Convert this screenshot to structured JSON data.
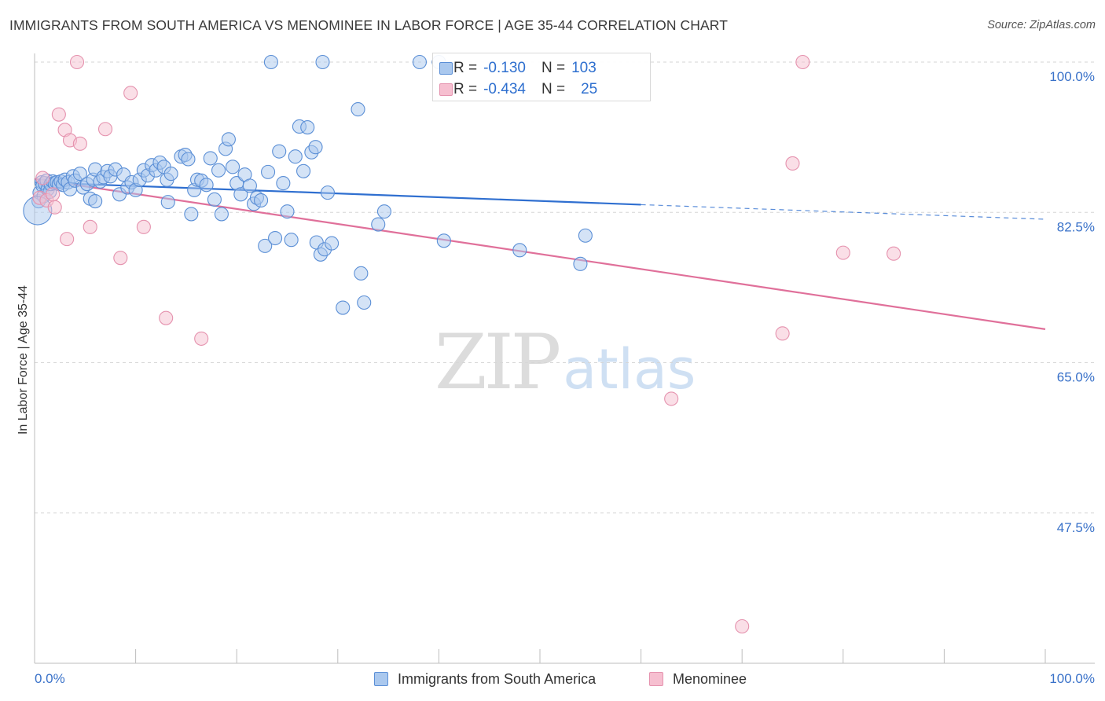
{
  "title": "IMMIGRANTS FROM SOUTH AMERICA VS MENOMINEE IN LABOR FORCE | AGE 35-44 CORRELATION CHART",
  "source": "Source: ZipAtlas.com",
  "watermark": {
    "zip": "ZIP",
    "atlas": "atlas"
  },
  "legend": {
    "r_label": "R = ",
    "n_label": "N = ",
    "rows": [
      {
        "r": "-0.130",
        "n": "103"
      },
      {
        "r": "-0.434",
        "n": "25"
      }
    ]
  },
  "colors": {
    "blue_fill": "#aac8ee",
    "blue_stroke": "#5b8fd6",
    "blue_line": "#2f6fd0",
    "pink_fill": "#f6bfd0",
    "pink_stroke": "#e592ae",
    "pink_line": "#e0709a",
    "grid": "#d6d6d6",
    "tick_label": "#3a72c9"
  },
  "chart_data": {
    "type": "scatter",
    "title": "IMMIGRANTS FROM SOUTH AMERICA VS MENOMINEE IN LABOR FORCE | AGE 35-44 CORRELATION CHART",
    "xlabel": "",
    "ylabel": "In Labor Force | Age 35-44",
    "xlim": [
      0,
      100
    ],
    "ylim": [
      30,
      100
    ],
    "x_tick_labels": [
      "0.0%",
      "100.0%"
    ],
    "y_ticks": [
      {
        "value": 100,
        "label": "100.0%"
      },
      {
        "value": 82.5,
        "label": "82.5%"
      },
      {
        "value": 65,
        "label": "65.0%"
      },
      {
        "value": 47.5,
        "label": "47.5%"
      }
    ],
    "grid": true,
    "legend_position": "top-center",
    "series": [
      {
        "name": "Immigrants from South America",
        "color": "#aac8ee",
        "trend": {
          "x": [
            0,
            60
          ],
          "y": [
            86.0,
            83.4
          ],
          "dashed_to": [
            100,
            81.7
          ]
        },
        "points": [
          [
            0.4,
            83.8
          ],
          [
            0.5,
            84.8
          ],
          [
            0.7,
            86.0
          ],
          [
            0.8,
            85.6
          ],
          [
            0.9,
            84.4
          ],
          [
            1.0,
            85.9
          ],
          [
            1.2,
            86.2
          ],
          [
            1.3,
            85.2
          ],
          [
            1.5,
            84.9
          ],
          [
            1.6,
            85.8
          ],
          [
            1.8,
            86.1
          ],
          [
            2.0,
            85.9
          ],
          [
            2.2,
            86.0
          ],
          [
            2.4,
            85.8
          ],
          [
            2.6,
            86.1
          ],
          [
            2.8,
            85.7
          ],
          [
            3.0,
            86.3
          ],
          [
            3.3,
            86.0
          ],
          [
            3.5,
            85.2
          ],
          [
            3.8,
            86.7
          ],
          [
            4.0,
            86.2
          ],
          [
            4.5,
            87.0
          ],
          [
            4.8,
            85.4
          ],
          [
            5.2,
            85.8
          ],
          [
            5.5,
            84.1
          ],
          [
            5.8,
            86.3
          ],
          [
            6.0,
            87.5
          ],
          [
            6.5,
            86.1
          ],
          [
            6.8,
            86.6
          ],
          [
            7.2,
            87.3
          ],
          [
            7.5,
            86.7
          ],
          [
            8.0,
            87.5
          ],
          [
            8.4,
            84.6
          ],
          [
            8.8,
            86.9
          ],
          [
            9.2,
            85.4
          ],
          [
            9.6,
            86.0
          ],
          [
            10.0,
            85.1
          ],
          [
            10.4,
            86.3
          ],
          [
            10.8,
            87.4
          ],
          [
            11.2,
            86.8
          ],
          [
            11.6,
            88.0
          ],
          [
            12.0,
            87.4
          ],
          [
            12.4,
            88.3
          ],
          [
            12.8,
            87.8
          ],
          [
            13.1,
            86.3
          ],
          [
            13.5,
            87.0
          ],
          [
            13.2,
            83.7
          ],
          [
            14.5,
            89.0
          ],
          [
            14.9,
            89.2
          ],
          [
            15.2,
            88.7
          ],
          [
            15.5,
            82.3
          ],
          [
            15.8,
            85.1
          ],
          [
            16.1,
            86.3
          ],
          [
            16.5,
            86.2
          ],
          [
            17.0,
            85.7
          ],
          [
            17.4,
            88.8
          ],
          [
            17.8,
            84.0
          ],
          [
            18.2,
            87.4
          ],
          [
            18.5,
            82.3
          ],
          [
            18.9,
            89.9
          ],
          [
            19.2,
            91.0
          ],
          [
            19.6,
            87.8
          ],
          [
            20.0,
            85.9
          ],
          [
            20.4,
            84.6
          ],
          [
            20.8,
            86.9
          ],
          [
            21.3,
            85.6
          ],
          [
            21.7,
            83.5
          ],
          [
            22.0,
            84.2
          ],
          [
            22.4,
            83.9
          ],
          [
            22.8,
            78.6
          ],
          [
            23.1,
            87.2
          ],
          [
            23.4,
            100.0
          ],
          [
            23.8,
            79.5
          ],
          [
            24.2,
            89.6
          ],
          [
            24.6,
            85.9
          ],
          [
            25.0,
            82.6
          ],
          [
            25.4,
            79.3
          ],
          [
            25.8,
            89.0
          ],
          [
            26.2,
            92.5
          ],
          [
            26.6,
            87.3
          ],
          [
            27.0,
            92.4
          ],
          [
            27.4,
            89.5
          ],
          [
            27.8,
            90.1
          ],
          [
            27.9,
            79.0
          ],
          [
            28.3,
            77.6
          ],
          [
            28.5,
            100.0
          ],
          [
            28.7,
            78.2
          ],
          [
            29.0,
            84.8
          ],
          [
            29.4,
            78.9
          ],
          [
            30.5,
            71.4
          ],
          [
            32.0,
            94.5
          ],
          [
            32.3,
            75.4
          ],
          [
            32.6,
            72.0
          ],
          [
            34.0,
            81.1
          ],
          [
            34.6,
            82.6
          ],
          [
            38.1,
            100.0
          ],
          [
            40.0,
            100.0
          ],
          [
            40.5,
            79.2
          ],
          [
            48.0,
            78.1
          ],
          [
            54.0,
            76.5
          ],
          [
            54.5,
            79.8
          ],
          [
            6.0,
            83.8
          ],
          [
            0.3,
            82.7
          ]
        ]
      },
      {
        "name": "Menominee",
        "color": "#f6bfd0",
        "trend": {
          "x": [
            0,
            100
          ],
          "y": [
            86.4,
            68.9
          ]
        },
        "points": [
          [
            0.5,
            84.2
          ],
          [
            0.8,
            86.5
          ],
          [
            1.2,
            83.9
          ],
          [
            2.0,
            83.1
          ],
          [
            2.4,
            93.9
          ],
          [
            3.0,
            92.1
          ],
          [
            3.5,
            90.9
          ],
          [
            3.2,
            79.4
          ],
          [
            4.5,
            90.5
          ],
          [
            4.2,
            100.0
          ],
          [
            5.5,
            80.8
          ],
          [
            7.0,
            92.2
          ],
          [
            8.5,
            77.2
          ],
          [
            9.5,
            96.4
          ],
          [
            10.8,
            80.8
          ],
          [
            13.0,
            70.2
          ],
          [
            16.5,
            67.8
          ],
          [
            63.0,
            60.8
          ],
          [
            70.0,
            34.3
          ],
          [
            74.0,
            68.4
          ],
          [
            75.0,
            88.2
          ],
          [
            76.0,
            100.0
          ],
          [
            80.0,
            77.8
          ],
          [
            85.0,
            77.7
          ],
          [
            1.8,
            84.6
          ]
        ]
      }
    ]
  }
}
